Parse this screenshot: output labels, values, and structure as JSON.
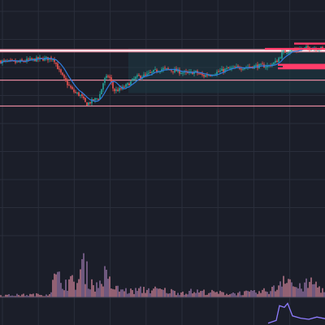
{
  "theme": {
    "background": "#1b1e29",
    "grid": "#2a2e3b",
    "up_color": "#26a69a",
    "down_color": "#ef5350",
    "ma_color": "#2f7de1",
    "level_color": "#e4889d",
    "resistance_color": "#ffffff",
    "zone_fill": "#1e3a46",
    "zone_blocks_color": "#ff3c6a",
    "osc_color": "#8f7cff"
  },
  "chart_data": {
    "type": "candlestick",
    "title": "",
    "xlabel": "",
    "ylabel": "",
    "grid": true,
    "price_range": [
      80,
      120
    ],
    "volume_range": [
      0,
      100
    ],
    "oscillator_range": [
      0,
      100
    ],
    "x_range": [
      0,
      200
    ],
    "horizontal_levels": [
      {
        "price": 111.4,
        "style": "resistance"
      },
      {
        "price": 106.4,
        "style": "level"
      },
      {
        "price": 102.0,
        "style": "level"
      }
    ],
    "zone": {
      "x_start": 79,
      "x_end": 200,
      "price_top": 111.8,
      "price_bottom": 104.2
    },
    "zone_blocks": [
      {
        "x_start": 181,
        "x_end": 200,
        "price": 112.6
      },
      {
        "x_start": 163,
        "x_end": 200,
        "price": 111.7
      },
      {
        "x_start": 171,
        "x_end": 200,
        "price": 109.0
      },
      {
        "x_start": 174,
        "x_end": 200,
        "price": 108.7
      },
      {
        "x_start": 171,
        "x_end": 200,
        "price": 108.4
      }
    ],
    "price_path": [
      [
        0,
        109.6
      ],
      [
        10,
        109.4
      ],
      [
        18,
        109.8
      ],
      [
        25,
        110.0
      ],
      [
        33,
        110.1
      ],
      [
        36,
        108.2
      ],
      [
        40,
        106.3
      ],
      [
        45,
        104.5
      ],
      [
        50,
        103.7
      ],
      [
        53,
        102.3
      ],
      [
        57,
        102.9
      ],
      [
        61,
        103.5
      ],
      [
        64,
        106.4
      ],
      [
        67,
        107.2
      ],
      [
        70,
        104.6
      ],
      [
        74,
        104.8
      ],
      [
        78,
        105.5
      ],
      [
        84,
        106.9
      ],
      [
        90,
        107.2
      ],
      [
        95,
        107.9
      ],
      [
        100,
        108.3
      ],
      [
        108,
        108.0
      ],
      [
        115,
        107.5
      ],
      [
        120,
        107.8
      ],
      [
        125,
        107.1
      ],
      [
        132,
        107.6
      ],
      [
        140,
        108.3
      ],
      [
        150,
        108.6
      ],
      [
        158,
        108.8
      ],
      [
        165,
        108.8
      ],
      [
        170,
        109.5
      ],
      [
        174,
        111.1
      ],
      [
        178,
        111.4
      ],
      [
        184,
        111.6
      ],
      [
        190,
        111.9
      ],
      [
        196,
        111.8
      ],
      [
        200,
        111.7
      ]
    ],
    "volume_path": [
      [
        0,
        4
      ],
      [
        30,
        6
      ],
      [
        34,
        40
      ],
      [
        40,
        30
      ],
      [
        48,
        30
      ],
      [
        51,
        68
      ],
      [
        55,
        35
      ],
      [
        60,
        20
      ],
      [
        64,
        45
      ],
      [
        70,
        18
      ],
      [
        80,
        12
      ],
      [
        90,
        16
      ],
      [
        100,
        14
      ],
      [
        110,
        10
      ],
      [
        120,
        12
      ],
      [
        140,
        8
      ],
      [
        160,
        10
      ],
      [
        170,
        18
      ],
      [
        176,
        52
      ],
      [
        180,
        25
      ],
      [
        184,
        18
      ],
      [
        192,
        30
      ],
      [
        196,
        22
      ],
      [
        200,
        12
      ]
    ],
    "oscillator_path": [
      [
        165,
        8
      ],
      [
        170,
        20
      ],
      [
        172,
        85
      ],
      [
        175,
        78
      ],
      [
        177,
        95
      ],
      [
        180,
        40
      ],
      [
        185,
        30
      ],
      [
        190,
        25
      ],
      [
        195,
        35
      ],
      [
        200,
        28
      ]
    ]
  }
}
